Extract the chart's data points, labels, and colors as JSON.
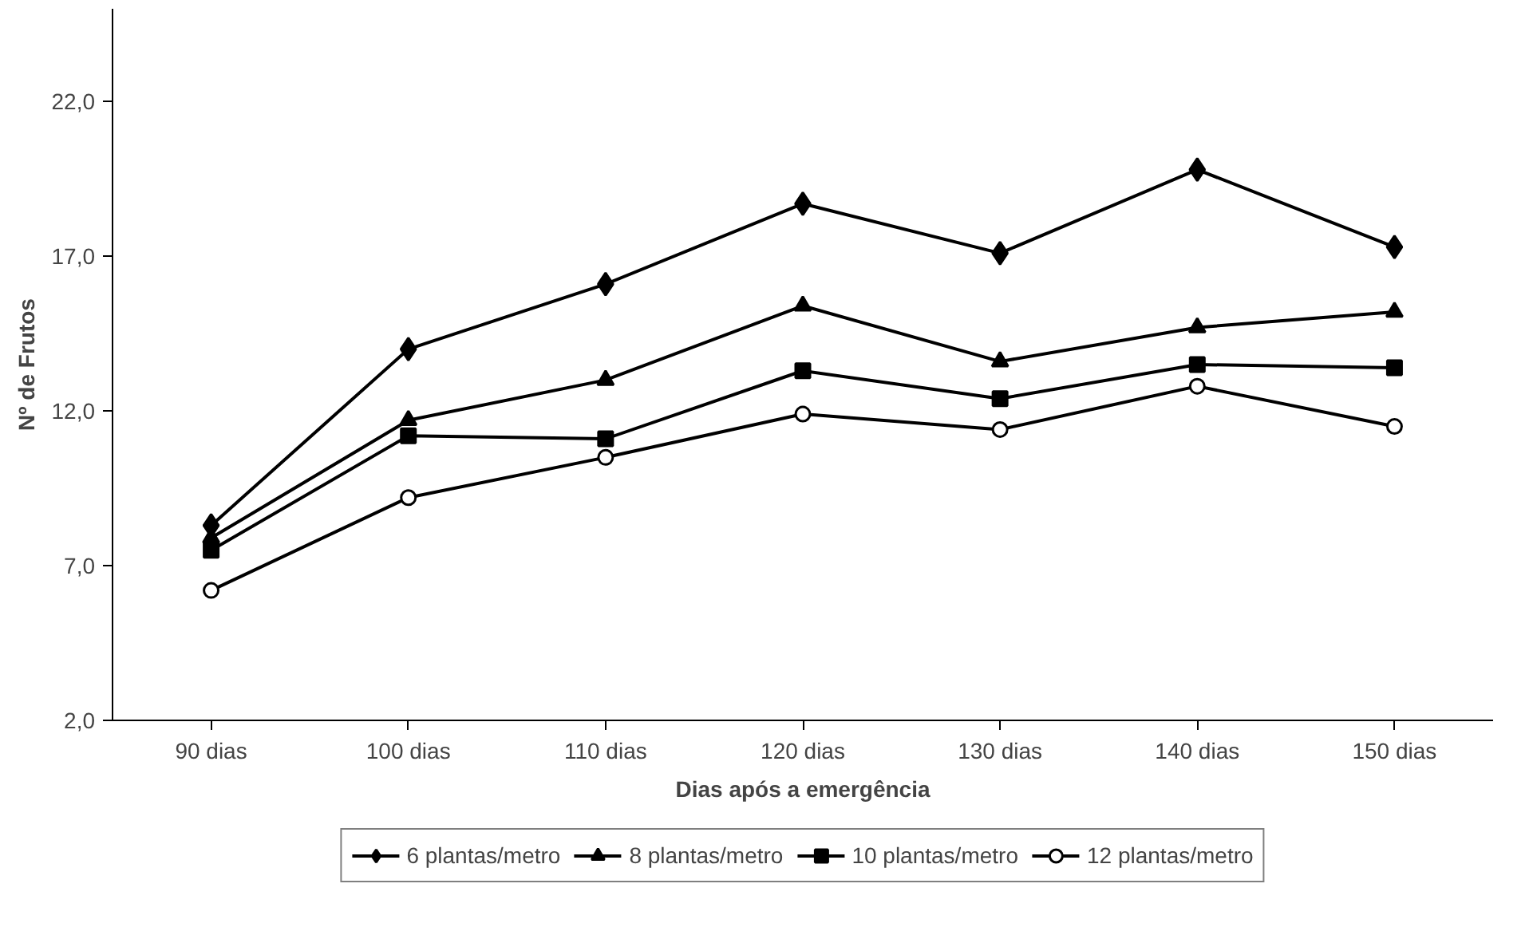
{
  "chart_data": {
    "type": "line",
    "xlabel": "Dias após a emergência",
    "ylabel": "Nº de Frutos",
    "categories": [
      "90 dias",
      "100 dias",
      "110 dias",
      "120 dias",
      "130 dias",
      "140 dias",
      "150 dias"
    ],
    "series": [
      {
        "name": "6 plantas/metro",
        "color": "#000000",
        "marker": "diamond",
        "values": [
          8.3,
          14.0,
          16.1,
          18.7,
          17.1,
          19.8,
          17.3
        ]
      },
      {
        "name": "8 plantas/metro",
        "color": "#000000",
        "marker": "triangle",
        "values": [
          7.9,
          11.7,
          13.0,
          15.4,
          13.6,
          14.7,
          15.2
        ]
      },
      {
        "name": "10 plantas/metro",
        "color": "#000000",
        "marker": "square",
        "values": [
          7.5,
          11.2,
          11.1,
          13.3,
          12.4,
          13.5,
          13.4
        ]
      },
      {
        "name": "12 plantas/metro",
        "color": "#000000",
        "marker": "circle",
        "values": [
          6.2,
          9.2,
          10.5,
          11.9,
          11.4,
          12.8,
          11.5
        ]
      }
    ],
    "ylim": [
      2,
      25
    ],
    "yticks": [
      {
        "value": 2,
        "label": "2,0"
      },
      {
        "value": 7,
        "label": "7,0"
      },
      {
        "value": 12,
        "label": "12,0"
      },
      {
        "value": 17,
        "label": "17,0"
      },
      {
        "value": 22,
        "label": "22,0"
      }
    ],
    "grid": false,
    "legend": "bottom",
    "line_style": "solid"
  }
}
